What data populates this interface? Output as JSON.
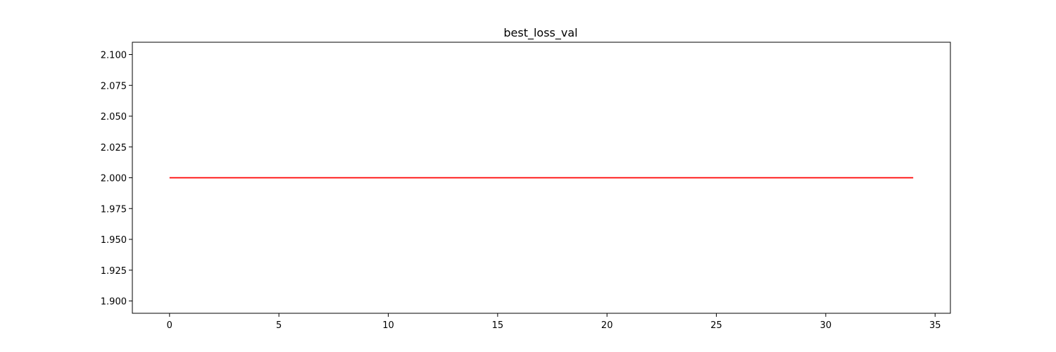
{
  "chart_data": {
    "type": "line",
    "title": "best_loss_val",
    "xlabel": "",
    "ylabel": "",
    "xlim": [
      -1.7,
      35.7
    ],
    "ylim": [
      1.89,
      2.11
    ],
    "xticks": [
      0,
      5,
      10,
      15,
      20,
      25,
      30,
      35
    ],
    "yticks": [
      1.9,
      1.925,
      1.95,
      1.975,
      2.0,
      2.025,
      2.05,
      2.075,
      2.1
    ],
    "ytick_labels": [
      "1.900",
      "1.925",
      "1.950",
      "1.975",
      "2.000",
      "2.025",
      "2.050",
      "2.075",
      "2.100"
    ],
    "xtick_labels": [
      "0",
      "5",
      "10",
      "15",
      "20",
      "25",
      "30",
      "35"
    ],
    "grid": false,
    "legend": "none",
    "series": [
      {
        "color": "#ff0000",
        "x": [
          0,
          1,
          2,
          3,
          4,
          5,
          6,
          7,
          8,
          9,
          10,
          11,
          12,
          13,
          14,
          15,
          16,
          17,
          18,
          19,
          20,
          21,
          22,
          23,
          24,
          25,
          26,
          27,
          28,
          29,
          30,
          31,
          32,
          33,
          34
        ],
        "y": [
          2.0,
          2.0,
          2.0,
          2.0,
          2.0,
          2.0,
          2.0,
          2.0,
          2.0,
          2.0,
          2.0,
          2.0,
          2.0,
          2.0,
          2.0,
          2.0,
          2.0,
          2.0,
          2.0,
          2.0,
          2.0,
          2.0,
          2.0,
          2.0,
          2.0,
          2.0,
          2.0,
          2.0,
          2.0,
          2.0,
          2.0,
          2.0,
          2.0,
          2.0,
          2.0
        ]
      }
    ]
  }
}
